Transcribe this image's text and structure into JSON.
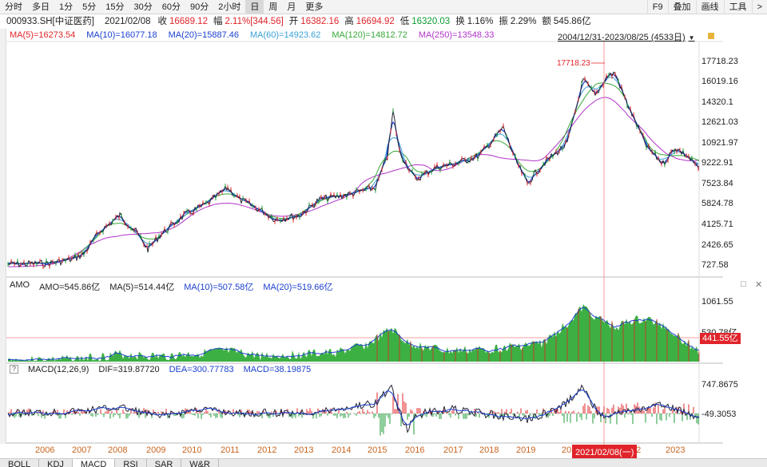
{
  "toolbar": {
    "tabs": [
      "分时",
      "多日",
      "1分",
      "5分",
      "15分",
      "30分",
      "60分",
      "90分",
      "2小时",
      "日",
      "周",
      "月",
      "更多"
    ],
    "active_index": 9,
    "right": [
      "F9",
      "叠加",
      "画线",
      "工具"
    ],
    "right_arrow": ">"
  },
  "info": {
    "code": "000933.SH[中证医药]",
    "date": "2021/02/08",
    "close_label": "收",
    "close": "16689.12",
    "change_label": "幅",
    "change": "2.11%[344.56]",
    "open_label": "开",
    "open": "16382.16",
    "high_label": "高",
    "high": "16694.92",
    "low_label": "低",
    "low": "16320.03",
    "turnover_label": "换",
    "turnover": "1.16%",
    "amp_label": "振",
    "amp": "2.29%",
    "amount_label": "额",
    "amount": "545.86亿"
  },
  "ma": {
    "ma5": "MA(5)=16273.54",
    "ma10": "MA(10)=16077.18",
    "ma20": "MA(20)=15887.46",
    "ma60": "MA(60)=14923.62",
    "ma120": "MA(120)=14812.72",
    "ma250": "MA(250)=13548.33"
  },
  "range": "2004/12/31-2023/08/25 (4533日)",
  "price_axis": [
    "17718.23",
    "16019.16",
    "14320.1",
    "12621.03",
    "10921.97",
    "9222.91",
    "7523.84",
    "5824.78",
    "4125.71",
    "2426.65",
    "727.58"
  ],
  "peak_label": "17718.23",
  "amo": {
    "title": "AMO",
    "amo": "AMO=545.86亿",
    "ma5": "MA(5)=514.44亿",
    "ma10": "MA(10)=507.58亿",
    "ma20": "MA(20)=519.66亿",
    "axis": [
      "1061.55",
      "530.78亿"
    ],
    "price_tag": "441.55亿"
  },
  "macd": {
    "q": "?",
    "title": "MACD(12,26,9)",
    "dif": "DIF=319.87720",
    "dea": "DEA=300.77783",
    "macd": "MACD=38.19875",
    "axis": [
      "747.8675",
      "-49.3053"
    ]
  },
  "years": [
    "2006",
    "2007",
    "2008",
    "2009",
    "2010",
    "2011",
    "2012",
    "2013",
    "2014",
    "2015",
    "2016",
    "2017",
    "2018",
    "2019",
    "20",
    "22",
    "2023"
  ],
  "date_tag": "2021/02/08(一)",
  "bottom_tabs": [
    "BOLL",
    "KDJ",
    "MACD",
    "RSI",
    "SAR",
    "W&R"
  ],
  "bottom_active": 2,
  "colors": {
    "ma5": "#e0242a",
    "ma10": "#1a3fd0",
    "ma20": "#1a3fd0",
    "ma60": "#39a0d8",
    "ma120": "#3aa83a",
    "ma250": "#b033c9",
    "amo_fill": "#3cb043",
    "up": "#e0242a",
    "down": "#1f9b3a"
  },
  "win_icons": {
    "restore": "□",
    "close": "✕"
  }
}
